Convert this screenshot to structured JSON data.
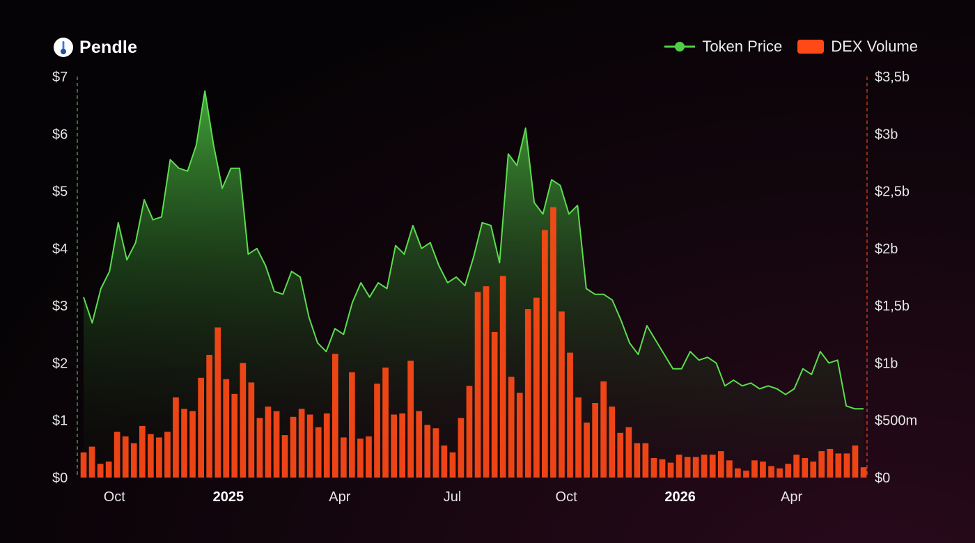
{
  "brand": {
    "name": "Pendle",
    "logo_icon": "pendle-logo-icon"
  },
  "legend": [
    {
      "label": "Token Price",
      "color": "#4fcf46"
    },
    {
      "label": "DEX Volume",
      "color": "#ff4a17"
    }
  ],
  "chart_data": {
    "type": "bar+line",
    "title": "",
    "left_axis": {
      "ticks": [
        "$0",
        "$1",
        "$2",
        "$3",
        "$4",
        "$5",
        "$6",
        "$7"
      ],
      "min": 0,
      "max": 7
    },
    "right_axis": {
      "ticks": [
        "$0",
        "$500m",
        "$1b",
        "$1,5b",
        "$2b",
        "$2,5b",
        "$3b",
        "$3,5b"
      ],
      "min": 0,
      "max": 3.5
    },
    "x_axis": {
      "start": "2024-09-01",
      "end": "2026-06-01",
      "ticks": [
        {
          "label": "Oct",
          "date": "2024-10-01",
          "bold": false
        },
        {
          "label": "2025",
          "date": "2025-01-01",
          "bold": true
        },
        {
          "label": "Apr",
          "date": "2025-04-01",
          "bold": false
        },
        {
          "label": "Jul",
          "date": "2025-07-01",
          "bold": false
        },
        {
          "label": "Oct",
          "date": "2025-10-01",
          "bold": false
        },
        {
          "label": "2026",
          "date": "2026-01-01",
          "bold": true
        },
        {
          "label": "Apr",
          "date": "2026-04-01",
          "bold": false
        }
      ]
    },
    "series": [
      {
        "name": "Token Price",
        "axis": "left",
        "type": "area-line",
        "color": "#4fcf46",
        "values": [
          3.15,
          2.7,
          3.3,
          3.6,
          4.45,
          3.8,
          4.1,
          4.85,
          4.5,
          4.55,
          5.55,
          5.4,
          5.35,
          5.8,
          6.75,
          5.8,
          5.05,
          5.4,
          5.4,
          3.9,
          4.0,
          3.7,
          3.25,
          3.2,
          3.6,
          3.5,
          2.8,
          2.35,
          2.2,
          2.6,
          2.5,
          3.05,
          3.4,
          3.15,
          3.4,
          3.3,
          4.05,
          3.9,
          4.4,
          4.0,
          4.1,
          3.7,
          3.4,
          3.5,
          3.35,
          3.85,
          4.45,
          4.4,
          3.75,
          5.65,
          5.45,
          6.1,
          4.8,
          4.6,
          5.2,
          5.1,
          4.6,
          4.75,
          3.3,
          3.2,
          3.2,
          3.1,
          2.75,
          2.35,
          2.15,
          2.65,
          2.4,
          2.15,
          1.9,
          1.9,
          2.2,
          2.05,
          2.1,
          2.0,
          1.6,
          1.7,
          1.6,
          1.65,
          1.55,
          1.6,
          1.55,
          1.45,
          1.55,
          1.9,
          1.8,
          2.2,
          2.0,
          2.05,
          1.25,
          1.2,
          1.2
        ]
      },
      {
        "name": "DEX Volume",
        "axis": "right",
        "type": "bar",
        "unit": "b",
        "color": "#ff4a17",
        "values": [
          0.22,
          0.27,
          0.12,
          0.14,
          0.4,
          0.36,
          0.3,
          0.45,
          0.38,
          0.35,
          0.4,
          0.7,
          0.6,
          0.58,
          0.87,
          1.07,
          1.31,
          0.86,
          0.73,
          1.0,
          0.83,
          0.52,
          0.62,
          0.58,
          0.37,
          0.53,
          0.6,
          0.55,
          0.44,
          0.56,
          1.08,
          0.35,
          0.92,
          0.34,
          0.36,
          0.82,
          0.96,
          0.55,
          0.56,
          1.02,
          0.58,
          0.46,
          0.43,
          0.28,
          0.22,
          0.52,
          0.8,
          1.62,
          1.67,
          1.27,
          1.76,
          0.88,
          0.74,
          1.47,
          1.57,
          2.16,
          2.36,
          1.45,
          1.09,
          0.7,
          0.48,
          0.65,
          0.84,
          0.62,
          0.39,
          0.44,
          0.3,
          0.3,
          0.17,
          0.16,
          0.13,
          0.2,
          0.18,
          0.18,
          0.2,
          0.2,
          0.23,
          0.15,
          0.08,
          0.06,
          0.15,
          0.14,
          0.1,
          0.08,
          0.12,
          0.2,
          0.17,
          0.14,
          0.23,
          0.25,
          0.21,
          0.21,
          0.28,
          0.09
        ]
      }
    ],
    "grid": false,
    "legend_position": "top-right"
  }
}
